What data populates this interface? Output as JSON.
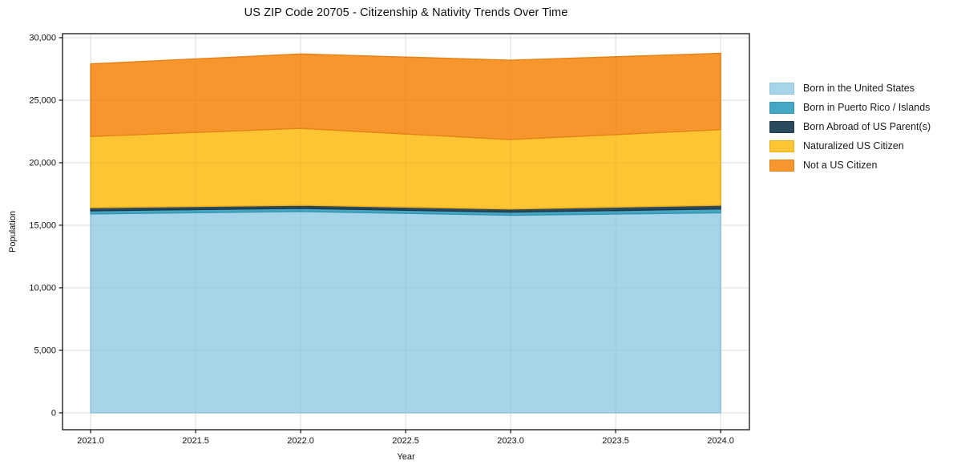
{
  "title": "US ZIP Code 20705 - Citizenship & Nativity Trends Over Time",
  "chart_data": {
    "type": "area",
    "stacked": true,
    "title": "US ZIP Code 20705 - Citizenship & Nativity Trends Over Time",
    "xlabel": "Year",
    "ylabel": "Population",
    "x": [
      2021,
      2022,
      2023,
      2024
    ],
    "series": [
      {
        "name": "Born in the United States",
        "color": "#a6d4e8",
        "edge_color": "#8fc3db",
        "values": [
          15900,
          16100,
          15800,
          16000
        ]
      },
      {
        "name": "Born in Puerto Rico / Islands",
        "color": "#44a8c5",
        "edge_color": "#3694b1",
        "values": [
          250,
          250,
          250,
          300
        ]
      },
      {
        "name": "Born Abroad of US Parent(s)",
        "color": "#2b4a5e",
        "edge_color": "#1f3848",
        "values": [
          250,
          250,
          250,
          300
        ]
      },
      {
        "name": "Naturalized US Citizen",
        "color": "#fdc433",
        "edge_color": "#efae15",
        "values": [
          5700,
          6150,
          5550,
          6050
        ]
      },
      {
        "name": "Not a US Citizen",
        "color": "#f8962e",
        "edge_color": "#e58119",
        "values": [
          5800,
          5950,
          6350,
          6100
        ]
      }
    ],
    "totals_by_year": [
      27900,
      28700,
      28200,
      28750
    ],
    "xlim": [
      2020.866,
      2024.137
    ],
    "ylim": [
      -1350,
      30320
    ],
    "xticks": {
      "values": [
        2021.0,
        2021.5,
        2022.0,
        2022.5,
        2023.0,
        2023.5,
        2024.0
      ],
      "labels": [
        "2021.0",
        "2021.5",
        "2022.0",
        "2022.5",
        "2023.0",
        "2023.5",
        "2024.0"
      ]
    },
    "yticks": {
      "values": [
        0,
        5000,
        10000,
        15000,
        20000,
        25000,
        30000
      ],
      "labels": [
        "0",
        "5,000",
        "10,000",
        "15,000",
        "20,000",
        "25,000",
        "30,000"
      ]
    },
    "grid": true,
    "grid_color": "#e7e7e7",
    "spine_color": "#000000",
    "legend_position": "right-outside"
  }
}
